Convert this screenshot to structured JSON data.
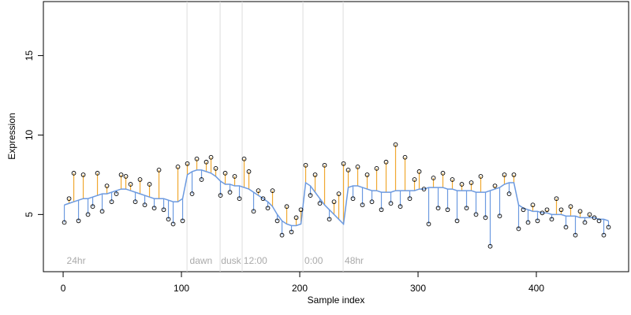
{
  "chart_data": {
    "type": "scatter",
    "xlabel": "Sample index",
    "ylabel": "Expression",
    "xlim": [
      -16.7,
      478
    ],
    "ylim": [
      1.4,
      18.4
    ],
    "xticks": [
      0,
      100,
      200,
      300,
      400
    ],
    "yticks": [
      5,
      10,
      15
    ],
    "above_color": "#f0a830",
    "below_color": "#6c9ae0",
    "line_color": "#6c9ae0",
    "vlines": [
      104.7,
      132.7,
      151.3,
      202.7,
      236.7
    ],
    "annotations": [
      {
        "text": "24hr",
        "x": 3,
        "y": 2.05
      },
      {
        "text": "dawn",
        "x": 107,
        "y": 2.05
      },
      {
        "text": "dusk",
        "x": 133.5,
        "y": 2.05
      },
      {
        "text": "12:00",
        "x": 152.5,
        "y": 2.05
      },
      {
        "text": "0:00",
        "x": 204,
        "y": 2.05
      },
      {
        "text": "48hr",
        "x": 238,
        "y": 2.05
      }
    ],
    "x": [
      1,
      5,
      9,
      13,
      17,
      21,
      25,
      29,
      33,
      37,
      41,
      45,
      49,
      53,
      57,
      61,
      65,
      69,
      73,
      77,
      81,
      85,
      89,
      93,
      97,
      101,
      105,
      109,
      113,
      117,
      121,
      125,
      129,
      133,
      137,
      141,
      145,
      149,
      153,
      157,
      161,
      165,
      169,
      173,
      177,
      181,
      185,
      189,
      193,
      197,
      201,
      205,
      209,
      213,
      217,
      221,
      225,
      229,
      233,
      237,
      241,
      245,
      249,
      253,
      257,
      261,
      265,
      269,
      273,
      277,
      281,
      285,
      289,
      293,
      297,
      301,
      305,
      309,
      313,
      317,
      321,
      325,
      329,
      333,
      337,
      341,
      345,
      349,
      353,
      357,
      361,
      365,
      369,
      373,
      377,
      381,
      385,
      389,
      393,
      397,
      401,
      405,
      409,
      413,
      417,
      421,
      425,
      429,
      433,
      437,
      441,
      445,
      449,
      453,
      457,
      461
    ],
    "values": [
      4.5,
      6.0,
      7.6,
      4.6,
      7.5,
      5.0,
      5.5,
      7.6,
      5.2,
      6.8,
      5.8,
      6.3,
      7.5,
      7.4,
      6.9,
      5.8,
      7.2,
      5.6,
      6.9,
      5.4,
      7.8,
      5.3,
      4.7,
      4.4,
      8.0,
      4.6,
      8.2,
      6.3,
      8.5,
      7.2,
      8.3,
      8.6,
      7.9,
      6.2,
      7.6,
      6.4,
      7.4,
      6.0,
      8.5,
      7.7,
      5.2,
      6.5,
      6.0,
      5.4,
      6.5,
      4.6,
      3.7,
      5.5,
      3.9,
      4.8,
      5.3,
      8.1,
      6.2,
      7.5,
      5.7,
      8.1,
      4.7,
      5.8,
      6.3,
      8.2,
      7.8,
      6.0,
      8.0,
      5.6,
      7.5,
      5.8,
      7.9,
      5.3,
      8.3,
      5.7,
      9.4,
      5.5,
      8.6,
      6.0,
      7.2,
      7.7,
      6.6,
      4.4,
      7.3,
      5.4,
      7.6,
      5.3,
      7.2,
      4.6,
      6.9,
      5.4,
      7.0,
      5.0,
      7.4,
      4.8,
      3.0,
      6.8,
      4.9,
      7.5,
      6.3,
      7.5,
      4.1,
      5.3,
      4.5,
      5.6,
      4.6,
      5.1,
      5.3,
      4.7,
      6.0,
      5.3,
      4.2,
      5.5,
      3.7,
      5.2,
      4.5,
      5.0,
      4.8,
      4.6,
      3.7,
      4.2
    ],
    "fitted": [
      5.6,
      5.7,
      5.8,
      5.9,
      6.0,
      6.0,
      6.1,
      6.2,
      6.3,
      6.3,
      6.4,
      6.5,
      6.6,
      6.6,
      6.5,
      6.4,
      6.3,
      6.2,
      6.1,
      6.0,
      6.0,
      6.0,
      5.9,
      5.8,
      5.8,
      6.0,
      7.5,
      7.7,
      7.8,
      7.8,
      7.7,
      7.6,
      7.4,
      7.1,
      6.9,
      6.9,
      6.8,
      6.8,
      6.7,
      6.6,
      6.4,
      6.2,
      6.0,
      5.8,
      5.5,
      5.0,
      4.6,
      4.4,
      4.3,
      4.3,
      4.4,
      7.0,
      6.8,
      6.4,
      6.0,
      5.6,
      5.3,
      5.0,
      4.7,
      4.4,
      6.7,
      6.8,
      6.8,
      6.7,
      6.6,
      6.5,
      6.5,
      6.4,
      6.4,
      6.4,
      6.5,
      6.5,
      6.5,
      6.5,
      6.5,
      6.6,
      6.6,
      6.7,
      6.7,
      6.7,
      6.7,
      6.6,
      6.6,
      6.5,
      6.5,
      6.5,
      6.5,
      6.4,
      6.4,
      6.4,
      6.5,
      6.6,
      6.7,
      6.9,
      7.0,
      7.0,
      5.6,
      5.4,
      5.3,
      5.2,
      5.2,
      5.1,
      5.1,
      5.0,
      5.0,
      5.0,
      4.9,
      4.9,
      4.9,
      4.8,
      4.8,
      4.8,
      4.8,
      4.7,
      4.7,
      4.6
    ]
  }
}
